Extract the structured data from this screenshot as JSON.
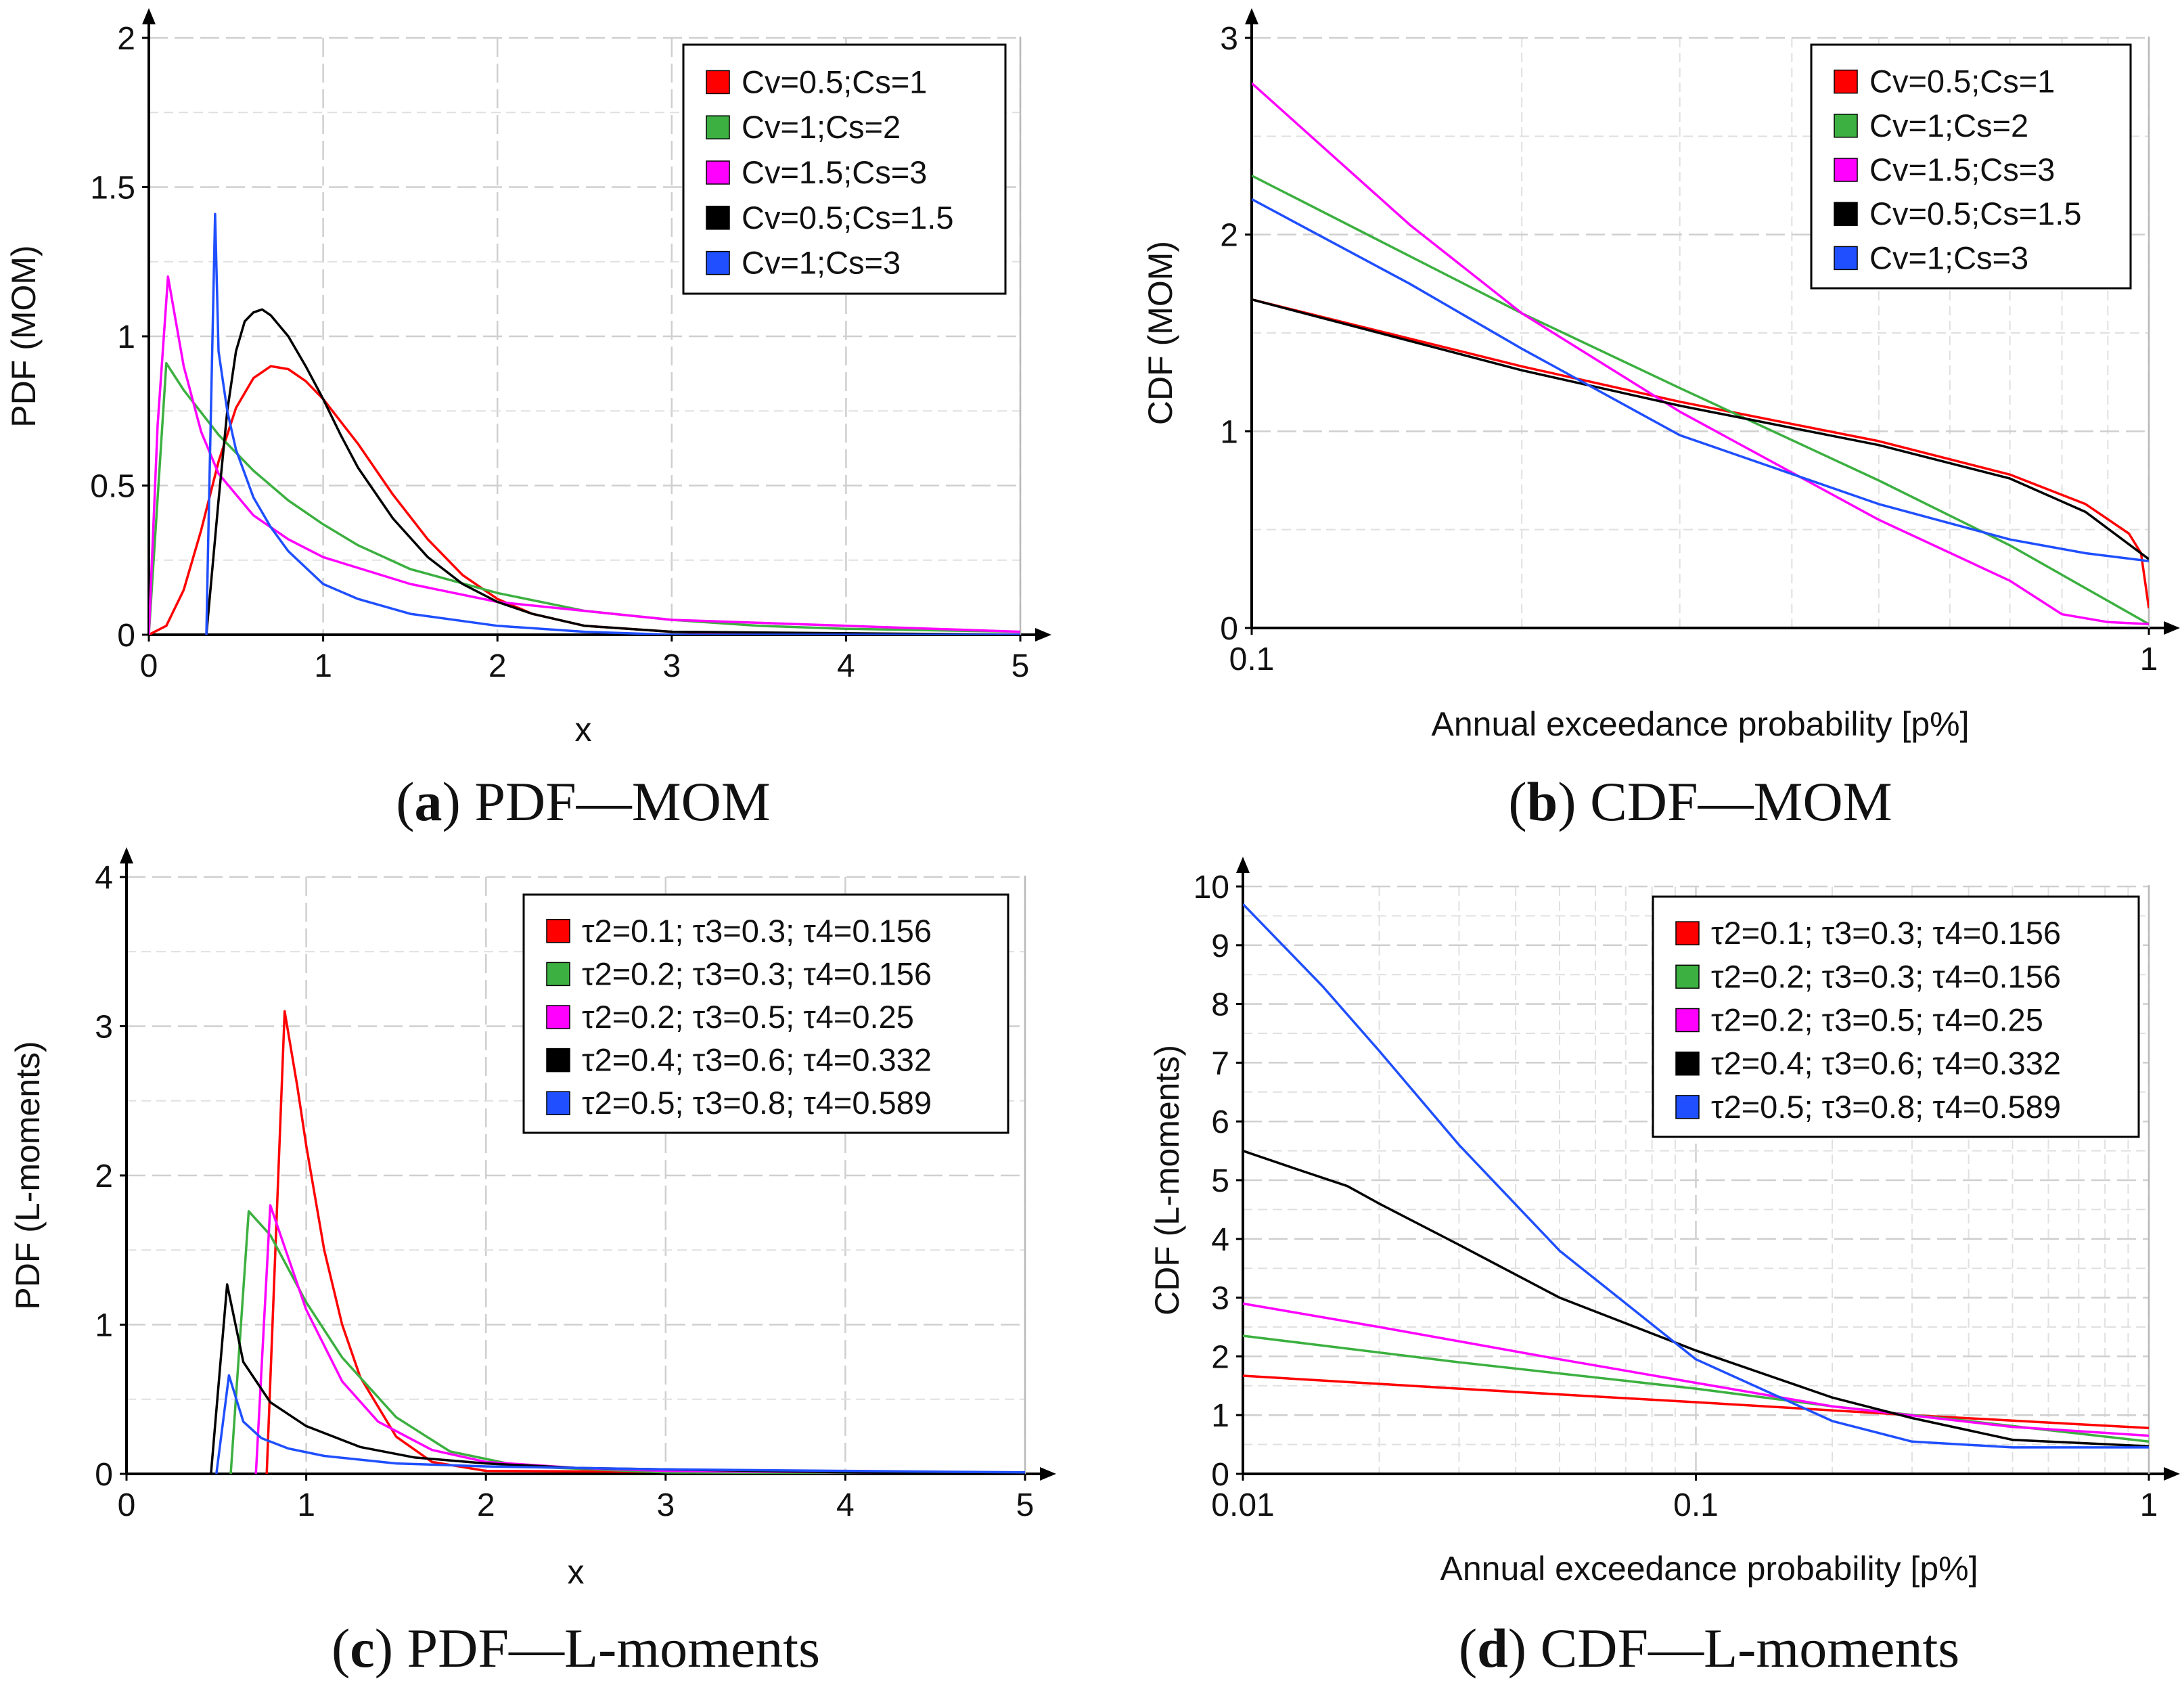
{
  "colors": {
    "red": "#ff0000",
    "green": "#3cb040",
    "magenta": "#ff00ff",
    "black": "#000000",
    "blue": "#1f4fff"
  },
  "chart_data": [
    {
      "id": "a",
      "type": "line",
      "caption_letter": "a",
      "caption_text": " PDF—MOM",
      "xlabel": "x",
      "ylabel": "PDF (MOM)",
      "xscale": "linear",
      "xlim": [
        0,
        5
      ],
      "ylim": [
        0,
        2
      ],
      "xticks": [
        0,
        1,
        2,
        3,
        4,
        5
      ],
      "xtick_labels": [
        "0",
        "1",
        "2",
        "3",
        "4",
        "5"
      ],
      "yticks": [
        0,
        0.5,
        1,
        1.5,
        2
      ],
      "ytick_labels": [
        "0",
        "0.5",
        "1",
        "1.5",
        "2"
      ],
      "legend_position": "top-right",
      "series": [
        {
          "name": "Cv=0.5;Cs=1",
          "color": "#ff0000",
          "x": [
            0,
            0.1,
            0.2,
            0.3,
            0.4,
            0.5,
            0.6,
            0.7,
            0.8,
            0.9,
            1.0,
            1.2,
            1.4,
            1.6,
            1.8,
            2.0,
            2.2,
            2.5,
            3.0,
            3.5,
            5.0
          ],
          "y": [
            0,
            0.03,
            0.15,
            0.35,
            0.58,
            0.76,
            0.86,
            0.9,
            0.89,
            0.85,
            0.79,
            0.64,
            0.47,
            0.32,
            0.2,
            0.12,
            0.07,
            0.03,
            0.01,
            0.003,
            0
          ]
        },
        {
          "name": "Cv=1;Cs=2",
          "color": "#3cb040",
          "x": [
            0,
            0.1,
            0.2,
            0.4,
            0.6,
            0.8,
            1.0,
            1.2,
            1.5,
            2.0,
            2.5,
            3.0,
            3.5,
            4.0,
            5.0
          ],
          "y": [
            0,
            0.91,
            0.82,
            0.67,
            0.55,
            0.45,
            0.37,
            0.3,
            0.22,
            0.14,
            0.08,
            0.05,
            0.03,
            0.02,
            0.01
          ]
        },
        {
          "name": "Cv=1.5;Cs=3",
          "color": "#ff00ff",
          "x": [
            0,
            0.05,
            0.11,
            0.2,
            0.3,
            0.4,
            0.6,
            0.8,
            1.0,
            1.5,
            2.0,
            3.0,
            4.0,
            5.0
          ],
          "y": [
            0,
            0.7,
            1.2,
            0.9,
            0.68,
            0.54,
            0.4,
            0.32,
            0.26,
            0.17,
            0.11,
            0.05,
            0.03,
            0.01
          ]
        },
        {
          "name": "Cv=0.5;Cs=1.5",
          "color": "#000000",
          "x": [
            0.33,
            0.4,
            0.45,
            0.5,
            0.55,
            0.6,
            0.65,
            0.7,
            0.8,
            0.9,
            1.0,
            1.1,
            1.2,
            1.4,
            1.6,
            1.8,
            2.0,
            2.2,
            2.5,
            3.0,
            5.0
          ],
          "y": [
            0,
            0.45,
            0.75,
            0.95,
            1.05,
            1.08,
            1.09,
            1.07,
            1.0,
            0.9,
            0.79,
            0.67,
            0.56,
            0.39,
            0.26,
            0.17,
            0.11,
            0.07,
            0.03,
            0.01,
            0
          ]
        },
        {
          "name": "Cv=1;Cs=3",
          "color": "#1f4fff",
          "x": [
            0.33,
            0.34,
            0.38,
            0.4,
            0.45,
            0.5,
            0.6,
            0.7,
            0.8,
            1.0,
            1.2,
            1.5,
            2.0,
            2.5,
            3.0,
            5.0
          ],
          "y": [
            0,
            0.3,
            1.41,
            0.95,
            0.75,
            0.62,
            0.46,
            0.36,
            0.28,
            0.17,
            0.12,
            0.07,
            0.03,
            0.01,
            0,
            0
          ]
        }
      ]
    },
    {
      "id": "b",
      "type": "line",
      "caption_letter": "b",
      "caption_text": " CDF—MOM",
      "xlabel": "Annual exceedance probability [p%]",
      "ylabel": "CDF (MOM)",
      "xscale": "log",
      "xlim": [
        0.1,
        1
      ],
      "ylim": [
        0,
        3
      ],
      "xticks": [
        0.1,
        1
      ],
      "xtick_labels": [
        "0.1",
        "1"
      ],
      "yticks": [
        0,
        1,
        2,
        3
      ],
      "ytick_labels": [
        "0",
        "1",
        "2",
        "3"
      ],
      "legend_position": "top-right",
      "series": [
        {
          "name": "Cv=0.5;Cs=1",
          "color": "#ff0000",
          "x": [
            0.1,
            0.2,
            0.3,
            0.5,
            0.7,
            0.85,
            0.95,
            0.98,
            1.0
          ],
          "y": [
            1.67,
            1.33,
            1.15,
            0.95,
            0.78,
            0.63,
            0.48,
            0.38,
            0.1
          ]
        },
        {
          "name": "Cv=1;Cs=2",
          "color": "#3cb040",
          "x": [
            0.1,
            0.2,
            0.3,
            0.5,
            0.7,
            1.0
          ],
          "y": [
            2.3,
            1.6,
            1.22,
            0.75,
            0.42,
            0.02
          ]
        },
        {
          "name": "Cv=1.5;Cs=3",
          "color": "#ff00ff",
          "x": [
            0.1,
            0.15,
            0.2,
            0.3,
            0.5,
            0.7,
            0.8,
            0.9,
            1.0
          ],
          "y": [
            2.77,
            2.05,
            1.6,
            1.1,
            0.55,
            0.24,
            0.07,
            0.03,
            0.02
          ]
        },
        {
          "name": "Cv=0.5;Cs=1.5",
          "color": "#000000",
          "x": [
            0.1,
            0.2,
            0.3,
            0.5,
            0.7,
            0.85,
            1.0
          ],
          "y": [
            1.67,
            1.31,
            1.13,
            0.93,
            0.76,
            0.59,
            0.35
          ]
        },
        {
          "name": "Cv=1;Cs=3",
          "color": "#1f4fff",
          "x": [
            0.1,
            0.15,
            0.2,
            0.3,
            0.5,
            0.7,
            0.85,
            1.0
          ],
          "y": [
            2.18,
            1.75,
            1.42,
            0.98,
            0.63,
            0.45,
            0.38,
            0.34
          ]
        }
      ]
    },
    {
      "id": "c",
      "type": "line",
      "caption_letter": "c",
      "caption_text": " PDF—L-moments",
      "xlabel": "x",
      "ylabel": "PDF (L-moments)",
      "xscale": "linear",
      "xlim": [
        0,
        5
      ],
      "ylim": [
        0,
        4
      ],
      "xticks": [
        0,
        1,
        2,
        3,
        4,
        5
      ],
      "xtick_labels": [
        "0",
        "1",
        "2",
        "3",
        "4",
        "5"
      ],
      "yticks": [
        0,
        1,
        2,
        3,
        4
      ],
      "ytick_labels": [
        "0",
        "1",
        "2",
        "3",
        "4"
      ],
      "legend_position": "top-right",
      "series": [
        {
          "name": "τ2=0.1; τ3=0.3; τ4=0.156",
          "color": "#ff0000",
          "x": [
            0.78,
            0.88,
            0.95,
            1.0,
            1.1,
            1.2,
            1.3,
            1.5,
            1.7,
            2.0,
            5.0
          ],
          "y": [
            0,
            3.1,
            2.6,
            2.2,
            1.5,
            1.0,
            0.65,
            0.25,
            0.08,
            0.02,
            0
          ]
        },
        {
          "name": "τ2=0.2; τ3=0.3; τ4=0.156",
          "color": "#3cb040",
          "x": [
            0.58,
            0.68,
            0.8,
            1.0,
            1.2,
            1.5,
            1.8,
            2.2,
            3.0,
            5.0
          ],
          "y": [
            0,
            1.76,
            1.6,
            1.15,
            0.78,
            0.38,
            0.15,
            0.05,
            0.01,
            0
          ]
        },
        {
          "name": "τ2=0.2; τ3=0.5; τ4=0.25",
          "color": "#ff00ff",
          "x": [
            0.72,
            0.8,
            0.9,
            1.0,
            1.2,
            1.4,
            1.7,
            2.0,
            2.5,
            3.0,
            5.0
          ],
          "y": [
            0,
            1.8,
            1.45,
            1.1,
            0.62,
            0.35,
            0.16,
            0.08,
            0.04,
            0.02,
            0
          ]
        },
        {
          "name": "τ2=0.4; τ3=0.6; τ4=0.332",
          "color": "#000000",
          "x": [
            0.47,
            0.56,
            0.65,
            0.8,
            1.0,
            1.3,
            1.6,
            2.0,
            2.5,
            3.0,
            4.0,
            5.0
          ],
          "y": [
            0,
            1.27,
            0.75,
            0.48,
            0.32,
            0.18,
            0.11,
            0.07,
            0.04,
            0.03,
            0.01,
            0
          ]
        },
        {
          "name": "τ2=0.5; τ3=0.8; τ4=0.589",
          "color": "#1f4fff",
          "x": [
            0.5,
            0.57,
            0.65,
            0.75,
            0.9,
            1.1,
            1.5,
            2.0,
            3.0,
            4.0,
            5.0
          ],
          "y": [
            0,
            0.66,
            0.35,
            0.24,
            0.17,
            0.12,
            0.07,
            0.05,
            0.03,
            0.02,
            0.01
          ]
        }
      ]
    },
    {
      "id": "d",
      "type": "line",
      "caption_letter": "d",
      "caption_text": " CDF—L-moments",
      "xlabel": "Annual exceedance probability [p%]",
      "ylabel": "CDF (L-moments)",
      "xscale": "log",
      "xlim": [
        0.01,
        1
      ],
      "ylim": [
        0,
        10
      ],
      "xticks": [
        0.01,
        0.1,
        1
      ],
      "xtick_labels": [
        "0.01",
        "0.1",
        "1"
      ],
      "yticks": [
        0,
        1,
        2,
        3,
        4,
        5,
        6,
        7,
        8,
        9,
        10
      ],
      "ytick_labels": [
        "0",
        "1",
        "2",
        "3",
        "4",
        "5",
        "6",
        "7",
        "8",
        "9",
        "10"
      ],
      "legend_position": "top-right",
      "series": [
        {
          "name": "τ2=0.1; τ3=0.3; τ4=0.156",
          "color": "#ff0000",
          "x": [
            0.01,
            0.03,
            0.1,
            0.3,
            1.0
          ],
          "y": [
            1.67,
            1.45,
            1.22,
            1.0,
            0.78
          ]
        },
        {
          "name": "τ2=0.2; τ3=0.3; τ4=0.156",
          "color": "#3cb040",
          "x": [
            0.01,
            0.03,
            0.1,
            0.2,
            0.4,
            1.0
          ],
          "y": [
            2.35,
            1.9,
            1.45,
            1.15,
            0.9,
            0.55
          ]
        },
        {
          "name": "τ2=0.2; τ3=0.5; τ4=0.25",
          "color": "#ff00ff",
          "x": [
            0.01,
            0.02,
            0.05,
            0.1,
            0.2,
            0.5,
            1.0
          ],
          "y": [
            2.9,
            2.5,
            1.95,
            1.55,
            1.15,
            0.8,
            0.65
          ]
        },
        {
          "name": "τ2=0.4; τ3=0.6; τ4=0.332",
          "color": "#000000",
          "x": [
            0.01,
            0.013,
            0.017,
            0.02,
            0.03,
            0.05,
            0.1,
            0.2,
            0.3,
            0.5,
            1.0
          ],
          "y": [
            5.5,
            5.2,
            4.9,
            4.6,
            3.9,
            3.0,
            2.1,
            1.3,
            0.95,
            0.58,
            0.47
          ]
        },
        {
          "name": "τ2=0.5; τ3=0.8; τ4=0.589",
          "color": "#1f4fff",
          "x": [
            0.01,
            0.015,
            0.02,
            0.03,
            0.05,
            0.1,
            0.2,
            0.3,
            0.5,
            1.0
          ],
          "y": [
            9.7,
            8.3,
            7.2,
            5.6,
            3.8,
            1.95,
            0.9,
            0.55,
            0.45,
            0.45
          ]
        }
      ]
    }
  ]
}
